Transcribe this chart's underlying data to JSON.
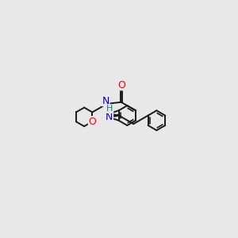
{
  "bg_color": "#e8e8e8",
  "bond_color": "#1a1a1a",
  "bond_width": 1.4,
  "atom_colors": {
    "O": "#ff0000",
    "N": "#0000cd",
    "H": "#008080",
    "C": "#1a1a1a"
  },
  "font_size": 8.5
}
